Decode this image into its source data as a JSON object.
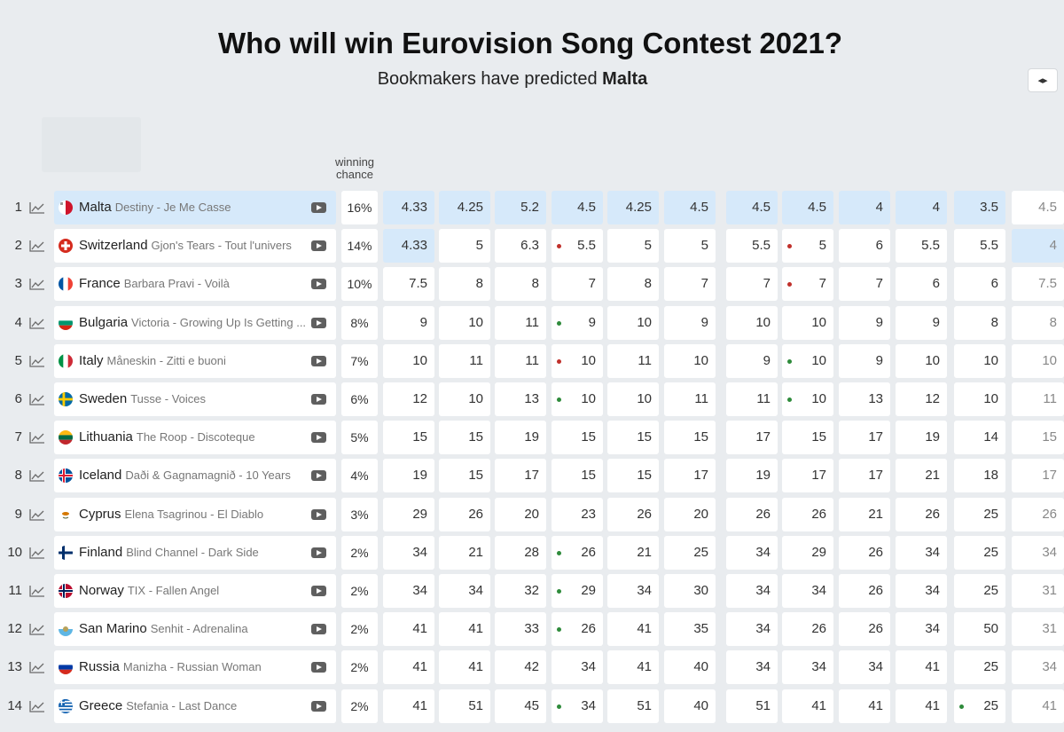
{
  "header": {
    "title": "Who will win Eurovision Song Contest 2021?",
    "subtitle_prefix": "Bookmakers have predicted",
    "subtitle_winner": "Malta",
    "toggle_icon": "arrows-horizontal-icon",
    "toggle_glyph": "◂▸"
  },
  "table": {
    "winning_chance_label_line1": "winning",
    "winning_chance_label_line2": "chance",
    "rows": [
      {
        "rank": "1",
        "country": "Malta",
        "song": "Destiny - Je Me Casse",
        "chance": "16%",
        "flag": "malta",
        "odds": [
          {
            "v": "4.33",
            "hl": true
          },
          {
            "v": "4.25",
            "hl": true
          },
          {
            "v": "5.2",
            "hl": true
          },
          {
            "v": "4.5",
            "hl": true
          },
          {
            "v": "4.25",
            "hl": true
          },
          {
            "v": "4.5",
            "hl": true
          },
          {
            "v": "4.5",
            "hl": true
          },
          {
            "v": "4.5",
            "hl": true
          },
          {
            "v": "4",
            "hl": true
          },
          {
            "v": "4",
            "hl": true
          },
          {
            "v": "3.5",
            "hl": true
          },
          {
            "v": "4.5"
          }
        ],
        "highlight": true
      },
      {
        "rank": "2",
        "country": "Switzerland",
        "song": "Gjon's Tears - Tout l'univers",
        "chance": "14%",
        "flag": "switzerland",
        "odds": [
          {
            "v": "4.33",
            "hl": true
          },
          {
            "v": "5"
          },
          {
            "v": "6.3"
          },
          {
            "v": "5.5",
            "dot": "red"
          },
          {
            "v": "5"
          },
          {
            "v": "5"
          },
          {
            "v": "5.5"
          },
          {
            "v": "5",
            "dot": "red"
          },
          {
            "v": "6"
          },
          {
            "v": "5.5"
          },
          {
            "v": "5.5"
          },
          {
            "v": "4",
            "hl": true
          }
        ]
      },
      {
        "rank": "3",
        "country": "France",
        "song": "Barbara Pravi - Voilà",
        "chance": "10%",
        "flag": "france",
        "odds": [
          {
            "v": "7.5"
          },
          {
            "v": "8"
          },
          {
            "v": "8"
          },
          {
            "v": "7"
          },
          {
            "v": "8"
          },
          {
            "v": "7"
          },
          {
            "v": "7"
          },
          {
            "v": "7",
            "dot": "red"
          },
          {
            "v": "7"
          },
          {
            "v": "6"
          },
          {
            "v": "6"
          },
          {
            "v": "7.5"
          }
        ]
      },
      {
        "rank": "4",
        "country": "Bulgaria",
        "song": "Victoria - Growing Up Is Getting ...",
        "chance": "8%",
        "flag": "bulgaria",
        "odds": [
          {
            "v": "9"
          },
          {
            "v": "10"
          },
          {
            "v": "11"
          },
          {
            "v": "9",
            "dot": "green"
          },
          {
            "v": "10"
          },
          {
            "v": "9"
          },
          {
            "v": "10"
          },
          {
            "v": "10"
          },
          {
            "v": "9"
          },
          {
            "v": "9"
          },
          {
            "v": "8"
          },
          {
            "v": "8"
          }
        ]
      },
      {
        "rank": "5",
        "country": "Italy",
        "song": "Måneskin - Zitti e buoni",
        "chance": "7%",
        "flag": "italy",
        "odds": [
          {
            "v": "10"
          },
          {
            "v": "11"
          },
          {
            "v": "11"
          },
          {
            "v": "10",
            "dot": "red"
          },
          {
            "v": "11"
          },
          {
            "v": "10"
          },
          {
            "v": "9"
          },
          {
            "v": "10",
            "dot": "green"
          },
          {
            "v": "9"
          },
          {
            "v": "10"
          },
          {
            "v": "10"
          },
          {
            "v": "10"
          }
        ]
      },
      {
        "rank": "6",
        "country": "Sweden",
        "song": "Tusse - Voices",
        "chance": "6%",
        "flag": "sweden",
        "odds": [
          {
            "v": "12"
          },
          {
            "v": "10"
          },
          {
            "v": "13"
          },
          {
            "v": "10",
            "dot": "green"
          },
          {
            "v": "10"
          },
          {
            "v": "11"
          },
          {
            "v": "11"
          },
          {
            "v": "10",
            "dot": "green"
          },
          {
            "v": "13"
          },
          {
            "v": "12"
          },
          {
            "v": "10"
          },
          {
            "v": "11"
          }
        ]
      },
      {
        "rank": "7",
        "country": "Lithuania",
        "song": "The Roop - Discoteque",
        "chance": "5%",
        "flag": "lithuania",
        "odds": [
          {
            "v": "15"
          },
          {
            "v": "15"
          },
          {
            "v": "19"
          },
          {
            "v": "15"
          },
          {
            "v": "15"
          },
          {
            "v": "15"
          },
          {
            "v": "17"
          },
          {
            "v": "15"
          },
          {
            "v": "17"
          },
          {
            "v": "19"
          },
          {
            "v": "14"
          },
          {
            "v": "15"
          }
        ]
      },
      {
        "rank": "8",
        "country": "Iceland",
        "song": "Daði & Gagnamagnið - 10 Years",
        "chance": "4%",
        "flag": "iceland",
        "odds": [
          {
            "v": "19"
          },
          {
            "v": "15"
          },
          {
            "v": "17"
          },
          {
            "v": "15"
          },
          {
            "v": "15"
          },
          {
            "v": "17"
          },
          {
            "v": "19"
          },
          {
            "v": "17"
          },
          {
            "v": "17"
          },
          {
            "v": "21"
          },
          {
            "v": "18"
          },
          {
            "v": "17"
          }
        ]
      },
      {
        "rank": "9",
        "country": "Cyprus",
        "song": "Elena Tsagrinou - El Diablo",
        "chance": "3%",
        "flag": "cyprus",
        "odds": [
          {
            "v": "29"
          },
          {
            "v": "26"
          },
          {
            "v": "20"
          },
          {
            "v": "23"
          },
          {
            "v": "26"
          },
          {
            "v": "20"
          },
          {
            "v": "26"
          },
          {
            "v": "26"
          },
          {
            "v": "21"
          },
          {
            "v": "26"
          },
          {
            "v": "25"
          },
          {
            "v": "26"
          }
        ]
      },
      {
        "rank": "10",
        "country": "Finland",
        "song": "Blind Channel - Dark Side",
        "chance": "2%",
        "flag": "finland",
        "odds": [
          {
            "v": "34"
          },
          {
            "v": "21"
          },
          {
            "v": "28"
          },
          {
            "v": "26",
            "dot": "green"
          },
          {
            "v": "21"
          },
          {
            "v": "25"
          },
          {
            "v": "34"
          },
          {
            "v": "29"
          },
          {
            "v": "26"
          },
          {
            "v": "34"
          },
          {
            "v": "25"
          },
          {
            "v": "34"
          }
        ]
      },
      {
        "rank": "11",
        "country": "Norway",
        "song": "TIX - Fallen Angel",
        "chance": "2%",
        "flag": "norway",
        "odds": [
          {
            "v": "34"
          },
          {
            "v": "34"
          },
          {
            "v": "32"
          },
          {
            "v": "29",
            "dot": "green"
          },
          {
            "v": "34"
          },
          {
            "v": "30"
          },
          {
            "v": "34"
          },
          {
            "v": "34"
          },
          {
            "v": "26"
          },
          {
            "v": "34"
          },
          {
            "v": "25"
          },
          {
            "v": "31"
          }
        ]
      },
      {
        "rank": "12",
        "country": "San Marino",
        "song": "Senhit - Adrenalina",
        "chance": "2%",
        "flag": "sanmarino",
        "odds": [
          {
            "v": "41"
          },
          {
            "v": "41"
          },
          {
            "v": "33"
          },
          {
            "v": "26",
            "dot": "green"
          },
          {
            "v": "41"
          },
          {
            "v": "35"
          },
          {
            "v": "34"
          },
          {
            "v": "26"
          },
          {
            "v": "26"
          },
          {
            "v": "34"
          },
          {
            "v": "50"
          },
          {
            "v": "31"
          }
        ]
      },
      {
        "rank": "13",
        "country": "Russia",
        "song": "Manizha - Russian Woman",
        "chance": "2%",
        "flag": "russia",
        "odds": [
          {
            "v": "41"
          },
          {
            "v": "41"
          },
          {
            "v": "42"
          },
          {
            "v": "34"
          },
          {
            "v": "41"
          },
          {
            "v": "40"
          },
          {
            "v": "34"
          },
          {
            "v": "34"
          },
          {
            "v": "34"
          },
          {
            "v": "41"
          },
          {
            "v": "25"
          },
          {
            "v": "34"
          }
        ]
      },
      {
        "rank": "14",
        "country": "Greece",
        "song": "Stefania - Last Dance",
        "chance": "2%",
        "flag": "greece",
        "odds": [
          {
            "v": "41"
          },
          {
            "v": "51"
          },
          {
            "v": "45"
          },
          {
            "v": "34",
            "dot": "green"
          },
          {
            "v": "51"
          },
          {
            "v": "40"
          },
          {
            "v": "51"
          },
          {
            "v": "41"
          },
          {
            "v": "41"
          },
          {
            "v": "41"
          },
          {
            "v": "25",
            "dot": "green"
          },
          {
            "v": "41"
          }
        ]
      }
    ]
  },
  "colors": {
    "highlight": "#d6e9fa",
    "dot_red": "#c0302b",
    "dot_green": "#2e8b3b",
    "background": "#e9ecef"
  },
  "icons": {
    "trend": "chart-line-icon",
    "video": "youtube-play-icon"
  }
}
